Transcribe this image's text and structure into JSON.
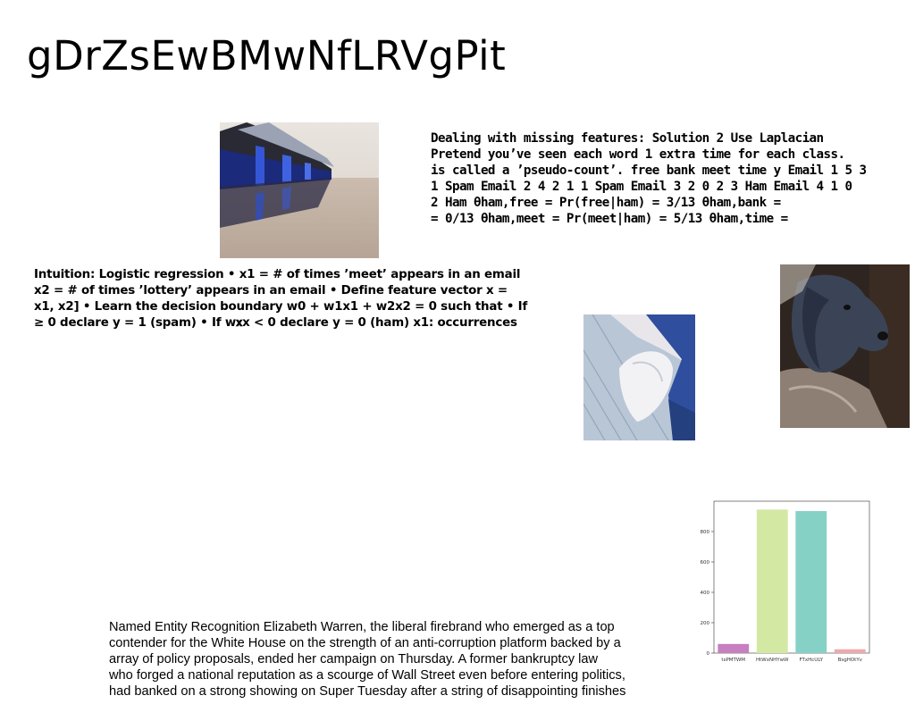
{
  "slide": {
    "title": "gDrZsEwBMwNfLRVgPit"
  },
  "text_blocks": {
    "laplacian": "Dealing with missing features: Solution 2 Use Laplacian\nPretend you’ve seen each word 1 extra time for each class.\nis called a ’pseudo-count’. free bank meet time y Email 1 5 3\n1 Spam Email 2 4 2 1 1 Spam Email 3 2 0 2 3 Ham Email 4 1 0\n2 Ham θham,free = Pr(free|ham) = 3/13 θham,bank =\n= 0/13 θham,meet = Pr(meet|ham) = 5/13 θham,time =",
    "logistic": "Intuition: Logistic regression • x1 = # of times ’meet’ appears in an email\nx2 = # of times ’lottery’ appears in an email • Define feature vector x =\nx1, x2] • Learn the decision boundary w0 + w1x1 + w2x2 = 0 such that • If\n≥ 0 declare y = 1 (spam) • If w𝐱x < 0 declare y = 0 (ham) x1: occurrences",
    "ner": "Named Entity Recognition Elizabeth Warren, the liberal firebrand who emerged as a top\ncontender for the White House on the strength of an anti-corruption platform backed by a\narray of policy proposals, ended her campaign on Thursday. A former bankruptcy law\nwho forged a national reputation as a scourge of Wall Street even before entering politics,\nhad banked on a strong showing on Super Tuesday after a string of disappointing finishes"
  },
  "images": {
    "boathouse": "boathouse-photo",
    "person": "person-photo",
    "dog": "dog-photo"
  },
  "chart_data": {
    "type": "bar",
    "categories": [
      "tsPMTWM",
      "HtWxNHYwW",
      "FTxHcULY",
      "BsgHOtYv"
    ],
    "values": [
      60,
      945,
      935,
      25
    ],
    "colors": [
      "#c77fbf",
      "#d3e8a3",
      "#86d1c5",
      "#f0a8ab"
    ],
    "ylim": [
      0,
      1000
    ],
    "yticks": [
      0,
      200,
      400,
      600,
      800
    ],
    "title": "",
    "xlabel": "",
    "ylabel": ""
  }
}
